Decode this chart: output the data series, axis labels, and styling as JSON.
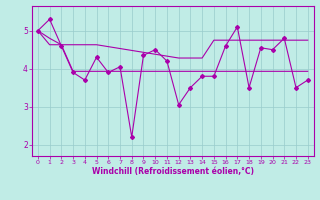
{
  "x": [
    0,
    1,
    2,
    3,
    4,
    5,
    6,
    7,
    8,
    9,
    10,
    11,
    12,
    13,
    14,
    15,
    16,
    17,
    18,
    19,
    20,
    21,
    22,
    23
  ],
  "line_jagged": [
    5.0,
    5.3,
    4.6,
    3.9,
    3.7,
    4.3,
    3.9,
    4.05,
    2.2,
    4.35,
    4.5,
    4.2,
    3.05,
    3.5,
    3.8,
    3.8,
    4.6,
    5.1,
    3.5,
    4.55,
    4.5,
    4.8,
    3.5,
    3.7
  ],
  "line_declining": [
    5.0,
    4.8,
    4.63,
    4.63,
    4.63,
    4.63,
    4.58,
    4.53,
    4.48,
    4.43,
    4.38,
    4.33,
    4.28,
    4.28,
    4.28,
    4.75,
    4.75,
    4.75,
    4.75,
    4.75,
    4.75,
    4.75,
    4.75,
    4.75
  ],
  "line_flat": [
    5.0,
    4.63,
    4.63,
    3.93,
    3.93,
    3.93,
    3.93,
    3.93,
    3.93,
    3.93,
    3.93,
    3.93,
    3.93,
    3.93,
    3.93,
    3.93,
    3.93,
    3.93,
    3.93,
    3.93,
    3.93,
    3.93,
    3.93,
    3.93
  ],
  "bg_color": "#c0ece6",
  "line_color": "#aa00aa",
  "grid_color": "#99cccc",
  "xlabel": "Windchill (Refroidissement éolien,°C)",
  "ylim": [
    1.7,
    5.65
  ],
  "yticks": [
    2,
    3,
    4,
    5
  ],
  "xticks": [
    0,
    1,
    2,
    3,
    4,
    5,
    6,
    7,
    8,
    9,
    10,
    11,
    12,
    13,
    14,
    15,
    16,
    17,
    18,
    19,
    20,
    21,
    22,
    23
  ]
}
